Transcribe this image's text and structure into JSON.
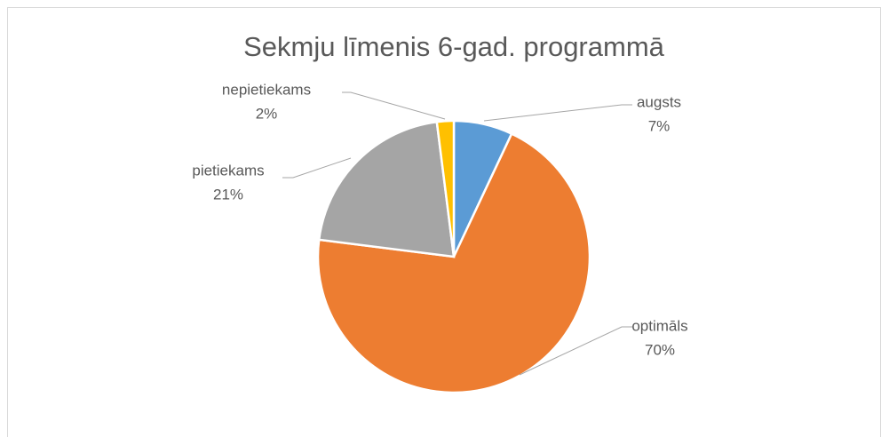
{
  "chart_data": {
    "type": "pie",
    "title": "Sekmju līmenis 6-gad. programmā",
    "categories": [
      "augsts",
      "optimāls",
      "pietiekams",
      "nepietiekams"
    ],
    "values": [
      7,
      70,
      21,
      2
    ],
    "value_labels": [
      "7%",
      "70%",
      "21%",
      "2%"
    ],
    "colors": [
      "#5b9bd5",
      "#ed7d31",
      "#a5a5a5",
      "#ffc000"
    ]
  }
}
